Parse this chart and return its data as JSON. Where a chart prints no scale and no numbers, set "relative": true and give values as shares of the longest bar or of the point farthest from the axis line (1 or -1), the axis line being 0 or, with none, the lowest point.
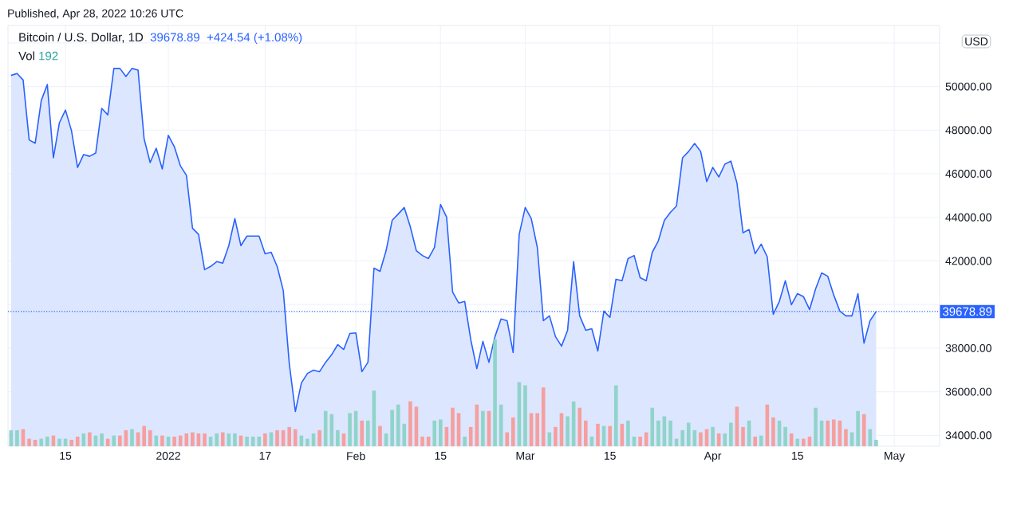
{
  "chart_data": [
    {
      "type": "area",
      "title": "Bitcoin / U.S. Dollar, 1D",
      "annotations": [
        "Published, Apr 28, 2022 10:26 UTC",
        "39678.89",
        "+424.54 (+1.08%)",
        "USD"
      ],
      "color": "#2962ff",
      "grid": true,
      "xlim": [
        "2021-12-05T12:00",
        "2022-05-08T12:00"
      ],
      "xticks": [
        {
          "value": "2021-12-15",
          "label": "15"
        },
        {
          "value": "2022-01-01",
          "label": "2022"
        },
        {
          "value": "2022-01-17",
          "label": "17"
        },
        {
          "value": "2022-02-01",
          "label": "Feb"
        },
        {
          "value": "2022-02-15",
          "label": "15"
        },
        {
          "value": "2022-03-01",
          "label": "Mar"
        },
        {
          "value": "2022-03-15",
          "label": "15"
        },
        {
          "value": "2022-04-01",
          "label": "Apr"
        },
        {
          "value": "2022-04-15",
          "label": "15"
        },
        {
          "value": "2022-05-01",
          "label": "May"
        }
      ],
      "ylim": [
        33500,
        52800
      ],
      "yticks": [
        {
          "value": 34000,
          "label": "34000.00"
        },
        {
          "value": 36000,
          "label": "36000.00"
        },
        {
          "value": 38000,
          "label": "38000.00"
        },
        {
          "value": 40000,
          "label": null
        },
        {
          "value": 42000,
          "label": "42000.00"
        },
        {
          "value": 44000,
          "label": "44000.00"
        },
        {
          "value": 46000,
          "label": "46000.00"
        },
        {
          "value": 48000,
          "label": "48000.00"
        },
        {
          "value": 50000,
          "label": "50000.00"
        },
        {
          "value": 52000,
          "label": null
        }
      ],
      "ref_lines": [
        {
          "axis": "y",
          "value": 39678.89,
          "label": "39678.89",
          "color": "#2962ff",
          "line_style": "dotted"
        }
      ],
      "x": [
        "2021-12-06",
        "2021-12-07",
        "2021-12-08",
        "2021-12-09",
        "2021-12-10",
        "2021-12-11",
        "2021-12-12",
        "2021-12-13",
        "2021-12-14",
        "2021-12-15",
        "2021-12-16",
        "2021-12-17",
        "2021-12-18",
        "2021-12-19",
        "2021-12-20",
        "2021-12-21",
        "2021-12-22",
        "2021-12-23",
        "2021-12-24",
        "2021-12-25",
        "2021-12-26",
        "2021-12-27",
        "2021-12-28",
        "2021-12-29",
        "2021-12-30",
        "2021-12-31",
        "2022-01-01",
        "2022-01-02",
        "2022-01-03",
        "2022-01-04",
        "2022-01-05",
        "2022-01-06",
        "2022-01-07",
        "2022-01-08",
        "2022-01-09",
        "2022-01-10",
        "2022-01-11",
        "2022-01-12",
        "2022-01-13",
        "2022-01-14",
        "2022-01-15",
        "2022-01-16",
        "2022-01-17",
        "2022-01-18",
        "2022-01-19",
        "2022-01-20",
        "2022-01-21",
        "2022-01-22",
        "2022-01-23",
        "2022-01-24",
        "2022-01-25",
        "2022-01-26",
        "2022-01-27",
        "2022-01-28",
        "2022-01-29",
        "2022-01-30",
        "2022-01-31",
        "2022-02-01",
        "2022-02-02",
        "2022-02-03",
        "2022-02-04",
        "2022-02-05",
        "2022-02-06",
        "2022-02-07",
        "2022-02-08",
        "2022-02-09",
        "2022-02-10",
        "2022-02-11",
        "2022-02-12",
        "2022-02-13",
        "2022-02-14",
        "2022-02-15",
        "2022-02-16",
        "2022-02-17",
        "2022-02-18",
        "2022-02-19",
        "2022-02-20",
        "2022-02-21",
        "2022-02-22",
        "2022-02-23",
        "2022-02-24",
        "2022-02-25",
        "2022-02-26",
        "2022-02-27",
        "2022-02-28",
        "2022-03-01",
        "2022-03-02",
        "2022-03-03",
        "2022-03-04",
        "2022-03-05",
        "2022-03-06",
        "2022-03-07",
        "2022-03-08",
        "2022-03-09",
        "2022-03-10",
        "2022-03-11",
        "2022-03-12",
        "2022-03-13",
        "2022-03-14",
        "2022-03-15",
        "2022-03-16",
        "2022-03-17",
        "2022-03-18",
        "2022-03-19",
        "2022-03-20",
        "2022-03-21",
        "2022-03-22",
        "2022-03-23",
        "2022-03-24",
        "2022-03-25",
        "2022-03-26",
        "2022-03-27",
        "2022-03-28",
        "2022-03-29",
        "2022-03-30",
        "2022-03-31",
        "2022-04-01",
        "2022-04-02",
        "2022-04-03",
        "2022-04-04",
        "2022-04-05",
        "2022-04-06",
        "2022-04-07",
        "2022-04-08",
        "2022-04-09",
        "2022-04-10",
        "2022-04-11",
        "2022-04-12",
        "2022-04-13",
        "2022-04-14",
        "2022-04-15",
        "2022-04-16",
        "2022-04-17",
        "2022-04-18",
        "2022-04-19",
        "2022-04-20",
        "2022-04-21",
        "2022-04-22",
        "2022-04-23",
        "2022-04-24",
        "2022-04-25",
        "2022-04-26",
        "2022-04-27",
        "2022-04-28"
      ],
      "values": [
        50510,
        50600,
        50300,
        47550,
        47400,
        49360,
        50090,
        46730,
        48340,
        48920,
        47970,
        46290,
        46880,
        46800,
        46950,
        49000,
        48700,
        50830,
        50830,
        50460,
        50830,
        50750,
        47600,
        46510,
        47170,
        46220,
        47760,
        47240,
        46360,
        45920,
        43500,
        43220,
        41600,
        41750,
        41970,
        41900,
        42700,
        43940,
        42700,
        43140,
        43140,
        43140,
        42330,
        42400,
        41740,
        40650,
        37280,
        35090,
        36400,
        36840,
        36990,
        36920,
        37350,
        37700,
        38160,
        37940,
        38670,
        38700,
        36920,
        37350,
        41670,
        41520,
        42470,
        43860,
        44150,
        44450,
        43570,
        42470,
        42250,
        42110,
        42620,
        44590,
        44010,
        40570,
        40070,
        40140,
        38380,
        37060,
        38310,
        37350,
        38530,
        39340,
        39260,
        37800,
        43220,
        44450,
        43940,
        42620,
        39260,
        39480,
        38530,
        38090,
        38820,
        41970,
        39480,
        38820,
        38890,
        37870,
        39700,
        39410,
        41160,
        41090,
        42110,
        42250,
        41230,
        41090,
        42400,
        42920,
        43860,
        44230,
        44520,
        46730,
        47020,
        47390,
        47020,
        45640,
        46290,
        45850,
        46440,
        46580,
        45570,
        43290,
        43440,
        42330,
        42770,
        42190,
        39550,
        40140,
        41090,
        39990,
        40500,
        40360,
        39770,
        40720,
        41450,
        41300,
        40430,
        39700,
        39480,
        39480,
        40500,
        38230,
        39260,
        39678.89
      ]
    },
    {
      "type": "bar",
      "relative": true,
      "annotations": [
        "192"
      ],
      "xlim": [
        "2021-12-05T12:00",
        "2022-05-08T12:00"
      ],
      "x": [
        "2021-12-06",
        "2021-12-07",
        "2021-12-08",
        "2021-12-09",
        "2021-12-10",
        "2021-12-11",
        "2021-12-12",
        "2021-12-13",
        "2021-12-14",
        "2021-12-15",
        "2021-12-16",
        "2021-12-17",
        "2021-12-18",
        "2021-12-19",
        "2021-12-20",
        "2021-12-21",
        "2021-12-22",
        "2021-12-23",
        "2021-12-24",
        "2021-12-25",
        "2021-12-26",
        "2021-12-27",
        "2021-12-28",
        "2021-12-29",
        "2021-12-30",
        "2021-12-31",
        "2022-01-01",
        "2022-01-02",
        "2022-01-03",
        "2022-01-04",
        "2022-01-05",
        "2022-01-06",
        "2022-01-07",
        "2022-01-08",
        "2022-01-09",
        "2022-01-10",
        "2022-01-11",
        "2022-01-12",
        "2022-01-13",
        "2022-01-14",
        "2022-01-15",
        "2022-01-16",
        "2022-01-17",
        "2022-01-18",
        "2022-01-19",
        "2022-01-20",
        "2022-01-21",
        "2022-01-22",
        "2022-01-23",
        "2022-01-24",
        "2022-01-25",
        "2022-01-26",
        "2022-01-27",
        "2022-01-28",
        "2022-01-29",
        "2022-01-30",
        "2022-01-31",
        "2022-02-01",
        "2022-02-02",
        "2022-02-03",
        "2022-02-04",
        "2022-02-05",
        "2022-02-06",
        "2022-02-07",
        "2022-02-08",
        "2022-02-09",
        "2022-02-10",
        "2022-02-11",
        "2022-02-12",
        "2022-02-13",
        "2022-02-14",
        "2022-02-15",
        "2022-02-16",
        "2022-02-17",
        "2022-02-18",
        "2022-02-19",
        "2022-02-20",
        "2022-02-21",
        "2022-02-22",
        "2022-02-23",
        "2022-02-24",
        "2022-02-25",
        "2022-02-26",
        "2022-02-27",
        "2022-02-28",
        "2022-03-01",
        "2022-03-02",
        "2022-03-03",
        "2022-03-04",
        "2022-03-05",
        "2022-03-06",
        "2022-03-07",
        "2022-03-08",
        "2022-03-09",
        "2022-03-10",
        "2022-03-11",
        "2022-03-12",
        "2022-03-13",
        "2022-03-14",
        "2022-03-15",
        "2022-03-16",
        "2022-03-17",
        "2022-03-18",
        "2022-03-19",
        "2022-03-20",
        "2022-03-21",
        "2022-03-22",
        "2022-03-23",
        "2022-03-24",
        "2022-03-25",
        "2022-03-26",
        "2022-03-27",
        "2022-03-28",
        "2022-03-29",
        "2022-03-30",
        "2022-03-31",
        "2022-04-01",
        "2022-04-02",
        "2022-04-03",
        "2022-04-04",
        "2022-04-05",
        "2022-04-06",
        "2022-04-07",
        "2022-04-08",
        "2022-04-09",
        "2022-04-10",
        "2022-04-11",
        "2022-04-12",
        "2022-04-13",
        "2022-04-14",
        "2022-04-15",
        "2022-04-16",
        "2022-04-17",
        "2022-04-18",
        "2022-04-19",
        "2022-04-20",
        "2022-04-21",
        "2022-04-22",
        "2022-04-23",
        "2022-04-24",
        "2022-04-25",
        "2022-04-26",
        "2022-04-27",
        "2022-04-28"
      ],
      "series": [
        {
          "name": "Vol",
          "values": [
            0.15,
            0.15,
            0.16,
            0.07,
            0.06,
            0.07,
            0.09,
            0.1,
            0.07,
            0.07,
            0.06,
            0.09,
            0.12,
            0.13,
            0.1,
            0.12,
            0.07,
            0.1,
            0.1,
            0.15,
            0.16,
            0.13,
            0.19,
            0.15,
            0.1,
            0.1,
            0.09,
            0.09,
            0.1,
            0.12,
            0.13,
            0.12,
            0.12,
            0.09,
            0.12,
            0.13,
            0.12,
            0.12,
            0.1,
            0.09,
            0.09,
            0.09,
            0.12,
            0.13,
            0.15,
            0.15,
            0.18,
            0.16,
            0.1,
            0.07,
            0.12,
            0.15,
            0.33,
            0.3,
            0.15,
            0.12,
            0.31,
            0.33,
            0.24,
            0.24,
            0.52,
            0.19,
            0.12,
            0.34,
            0.39,
            0.21,
            0.42,
            0.37,
            0.09,
            0.09,
            0.24,
            0.25,
            0.18,
            0.36,
            0.31,
            0.09,
            0.18,
            0.39,
            0.33,
            0.33,
            1,
            0.39,
            0.13,
            0.27,
            0.6,
            0.57,
            0.31,
            0.31,
            0.55,
            0.13,
            0.18,
            0.31,
            0.28,
            0.42,
            0.36,
            0.24,
            0.09,
            0.21,
            0.19,
            0.19,
            0.57,
            0.21,
            0.24,
            0.09,
            0.09,
            0.13,
            0.36,
            0.24,
            0.28,
            0.24,
            0.07,
            0.15,
            0.22,
            0.15,
            0.13,
            0.16,
            0.18,
            0.12,
            0.12,
            0.22,
            0.37,
            0.18,
            0.24,
            0.09,
            0.1,
            0.39,
            0.27,
            0.24,
            0.18,
            0.12,
            0.07,
            0.07,
            0.09,
            0.36,
            0.24,
            0.24,
            0.25,
            0.24,
            0.16,
            0.13,
            0.33,
            0.3,
            0.16,
            0.06
          ],
          "colors": [
            "#8fd3c9",
            "#8fd3c9",
            "#f5a09e",
            "#f5a09e",
            "#f5a09e",
            "#8fd3c9",
            "#8fd3c9",
            "#f5a09e",
            "#8fd3c9",
            "#8fd3c9",
            "#f5a09e",
            "#f5a09e",
            "#8fd3c9",
            "#f5a09e",
            "#8fd3c9",
            "#8fd3c9",
            "#f5a09e",
            "#8fd3c9",
            "#f5a09e",
            "#f5a09e",
            "#8fd3c9",
            "#f5a09e",
            "#f5a09e",
            "#f5a09e",
            "#8fd3c9",
            "#f5a09e",
            "#8fd3c9",
            "#f5a09e",
            "#f5a09e",
            "#f5a09e",
            "#f5a09e",
            "#f5a09e",
            "#f5a09e",
            "#8fd3c9",
            "#8fd3c9",
            "#f5a09e",
            "#8fd3c9",
            "#8fd3c9",
            "#f5a09e",
            "#8fd3c9",
            "#8fd3c9",
            "#8fd3c9",
            "#f5a09e",
            "#8fd3c9",
            "#f5a09e",
            "#f5a09e",
            "#f5a09e",
            "#f5a09e",
            "#8fd3c9",
            "#8fd3c9",
            "#8fd3c9",
            "#f5a09e",
            "#8fd3c9",
            "#8fd3c9",
            "#8fd3c9",
            "#f5a09e",
            "#8fd3c9",
            "#8fd3c9",
            "#f5a09e",
            "#8fd3c9",
            "#8fd3c9",
            "#f5a09e",
            "#8fd3c9",
            "#8fd3c9",
            "#8fd3c9",
            "#8fd3c9",
            "#f5a09e",
            "#f5a09e",
            "#f5a09e",
            "#f5a09e",
            "#8fd3c9",
            "#8fd3c9",
            "#f5a09e",
            "#f5a09e",
            "#f5a09e",
            "#8fd3c9",
            "#f5a09e",
            "#f5a09e",
            "#8fd3c9",
            "#f5a09e",
            "#8fd3c9",
            "#8fd3c9",
            "#f5a09e",
            "#f5a09e",
            "#8fd3c9",
            "#8fd3c9",
            "#f5a09e",
            "#f5a09e",
            "#f5a09e",
            "#8fd3c9",
            "#f5a09e",
            "#f5a09e",
            "#8fd3c9",
            "#8fd3c9",
            "#f5a09e",
            "#f5a09e",
            "#8fd3c9",
            "#f5a09e",
            "#8fd3c9",
            "#f5a09e",
            "#8fd3c9",
            "#f5a09e",
            "#8fd3c9",
            "#8fd3c9",
            "#f5a09e",
            "#f5a09e",
            "#8fd3c9",
            "#8fd3c9",
            "#8fd3c9",
            "#8fd3c9",
            "#8fd3c9",
            "#8fd3c9",
            "#8fd3c9",
            "#8fd3c9",
            "#f5a09e",
            "#f5a09e",
            "#8fd3c9",
            "#f5a09e",
            "#8fd3c9",
            "#8fd3c9",
            "#f5a09e",
            "#f5a09e",
            "#8fd3c9",
            "#f5a09e",
            "#8fd3c9",
            "#f5a09e",
            "#f5a09e",
            "#8fd3c9",
            "#8fd3c9",
            "#f5a09e",
            "#8fd3c9",
            "#f5a09e",
            "#f5a09e",
            "#8fd3c9",
            "#8fd3c9",
            "#f5a09e",
            "#f5a09e",
            "#f5a09e",
            "#f5a09e",
            "#8fd3c9",
            "#8fd3c9",
            "#f5a09e",
            "#8fd3c9",
            "#8fd3c9"
          ]
        }
      ]
    }
  ]
}
